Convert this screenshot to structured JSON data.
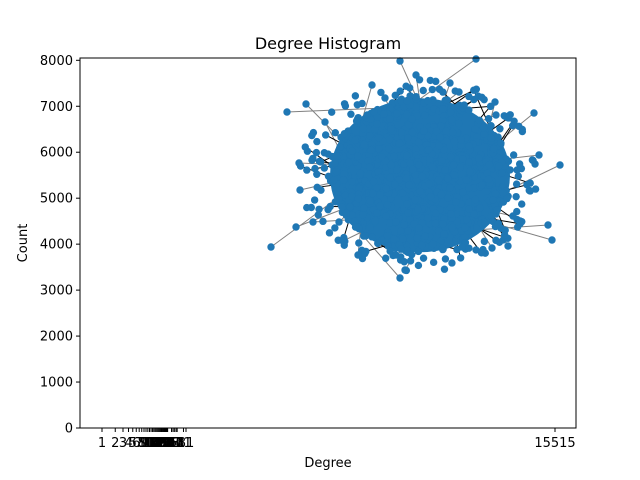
{
  "chart_data": {
    "type": "scatter",
    "title": "Degree Histogram",
    "xlabel": "Degree",
    "ylabel": "Count",
    "ylim": [
      0,
      8050
    ],
    "y_ticks": [
      0,
      1000,
      2000,
      3000,
      4000,
      5000,
      6000,
      7000,
      8000
    ],
    "y_tick_labels": [
      "0",
      "1000",
      "2000",
      "3000",
      "4000",
      "5000",
      "6000",
      "7000",
      "8000"
    ],
    "x_tick_labels_right": "15515",
    "x_tick_labels_left_cluster": [
      "1",
      "2",
      "3",
      "4",
      "5",
      "6",
      "7",
      "8",
      "9",
      "10",
      "11",
      "12",
      "13",
      "14",
      "15",
      "16",
      "17",
      "18",
      "19",
      "20",
      "21",
      "22",
      "23",
      "24",
      "25",
      "26",
      "27",
      "28",
      "29",
      "30",
      "31",
      "38",
      "41",
      "44",
      "48",
      "51",
      "71",
      "81"
    ],
    "grid": false,
    "node_color": "#1f77b4",
    "edge_color": "#000000",
    "edge_color_light": "#808080",
    "center": {
      "x": 0.0,
      "y": 5500
    },
    "overlay_note": "network drawing overlaid on histogram axes"
  }
}
